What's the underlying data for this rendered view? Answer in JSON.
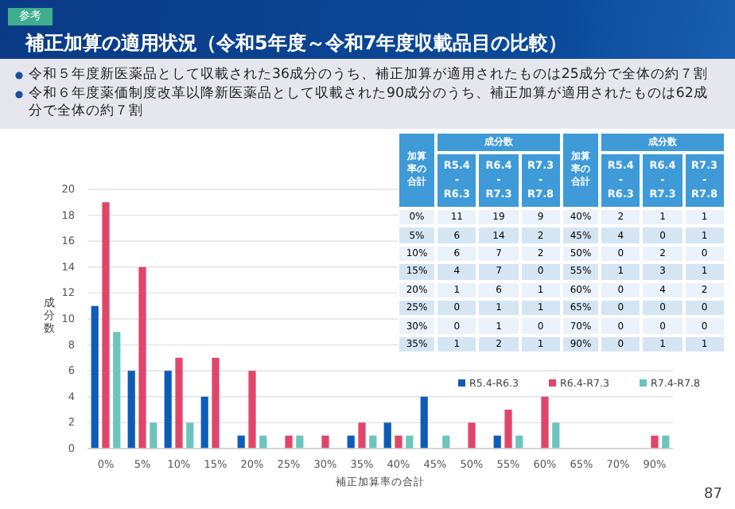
{
  "chart_data": [
    {
      "type": "bar",
      "title": "補正加算の適用状況（令和5年度～令和7年度収載品目の比較）",
      "subtitle": "令和５年度新医薬品として収載された36成分のうち、補正加算が適用されたものは25成分で全体の約７割",
      "xlabel": "補正加算率の合計",
      "ylabel": "成分数",
      "annotations": [
        "令和６年度薬価制度改革以降新医薬品として収載された90成分のうち、補正加算が適用されたものは62成分で全体の約７割",
        "参考",
        "87"
      ],
      "categories": [
        "0%",
        "5%",
        "10%",
        "15%",
        "20%",
        "25%",
        "30%",
        "35%",
        "40%",
        "45%",
        "50%",
        "55%",
        "60%",
        "65%",
        "70%",
        "90%"
      ],
      "series": [
        {
          "name": "R5.4-R6.3",
          "color": "#0e5cb8",
          "values": [
            11,
            6,
            6,
            4,
            1,
            0,
            0,
            1,
            2,
            4,
            0,
            1,
            0,
            0,
            0,
            0
          ]
        },
        {
          "name": "R6.4-R7.3",
          "color": "#e0456a",
          "values": [
            19,
            14,
            7,
            7,
            6,
            1,
            1,
            2,
            1,
            0,
            2,
            3,
            4,
            0,
            0,
            1
          ]
        },
        {
          "name": "R7.4-R7.8",
          "color": "#6cc4bf",
          "values": [
            9,
            2,
            2,
            0,
            1,
            1,
            0,
            1,
            1,
            1,
            0,
            1,
            2,
            0,
            0,
            1
          ]
        }
      ],
      "ylim": [
        0,
        20
      ],
      "yticks": [
        0,
        2,
        4,
        6,
        8,
        10,
        12,
        14,
        16,
        18,
        20
      ],
      "grid": "y",
      "legend": "bottom right"
    },
    {
      "type": "heatmap",
      "xlabel": "成分数",
      "ylabel": "加算率の合計",
      "categories": [
        "R5.4 - R6.3",
        "R6.4 - R7.3",
        "R7.3 - R7.8"
      ],
      "y_categories": [
        "0%",
        "5%",
        "10%",
        "15%",
        "20%",
        "25%",
        "30%",
        "35%"
      ],
      "cells": [
        [
          11,
          19,
          9
        ],
        [
          6,
          14,
          2
        ],
        [
          6,
          7,
          2
        ],
        [
          4,
          7,
          0
        ],
        [
          1,
          6,
          1
        ],
        [
          0,
          1,
          1
        ],
        [
          0,
          1,
          0
        ],
        [
          1,
          2,
          1
        ]
      ],
      "data_labels": true
    },
    {
      "type": "heatmap",
      "xlabel": "成分数",
      "ylabel": "加算率の合計",
      "categories": [
        "R5.4 - R6.3",
        "R6.4 - R7.3",
        "R7.3 - R7.8"
      ],
      "y_categories": [
        "40%",
        "45%",
        "50%",
        "55%",
        "60%",
        "65%",
        "70%",
        "90%"
      ],
      "cells": [
        [
          2,
          1,
          1
        ],
        [
          4,
          0,
          1
        ],
        [
          0,
          2,
          0
        ],
        [
          1,
          3,
          1
        ],
        [
          0,
          4,
          2
        ],
        [
          0,
          0,
          0
        ],
        [
          0,
          0,
          0
        ],
        [
          0,
          1,
          1
        ]
      ],
      "data_labels": true
    }
  ]
}
